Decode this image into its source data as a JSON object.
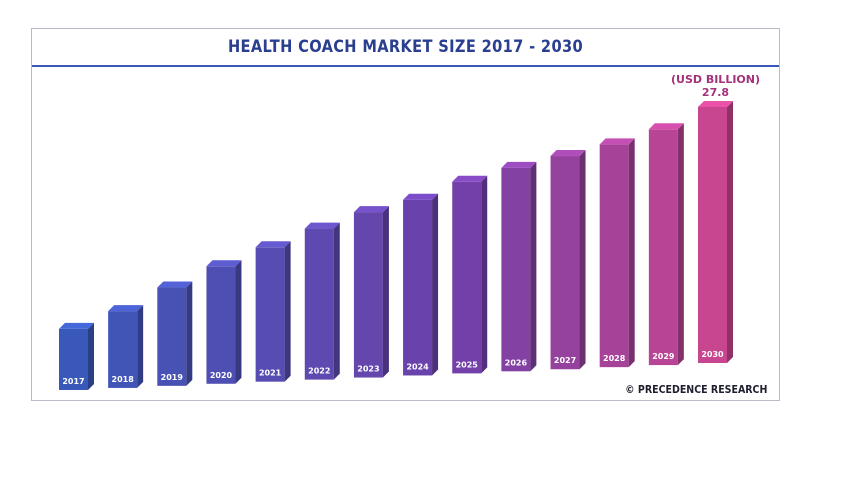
{
  "colors": {
    "title": "#2a3f8f",
    "start_bar": "#3a58b9",
    "end_bar": "#c8458f",
    "annotation": "#a3327a",
    "frame_accent_dark": "#231e66",
    "frame_accent_light": "#4d6fd1"
  },
  "chart_data": {
    "type": "bar",
    "title": "HEALTH COACH MARKET SIZE 2017 - 2030",
    "unit_label": "(USD BILLION)",
    "categories": [
      "2017",
      "2018",
      "2019",
      "2020",
      "2021",
      "2022",
      "2023",
      "2024",
      "2025",
      "2026",
      "2027",
      "2028",
      "2029",
      "2030"
    ],
    "values": [
      6.0,
      7.6,
      9.8,
      11.8,
      13.6,
      15.4,
      17.0,
      18.2,
      20.0,
      21.4,
      22.6,
      23.8,
      25.4,
      27.8
    ],
    "labeled_values": {
      "2030": "27.8"
    },
    "xlabel": "",
    "ylabel": "USD Billion",
    "ylim": [
      0,
      30
    ],
    "grid": false,
    "legend": "none"
  },
  "footer": {
    "copyright": "© PRECEDENCE RESEARCH"
  }
}
